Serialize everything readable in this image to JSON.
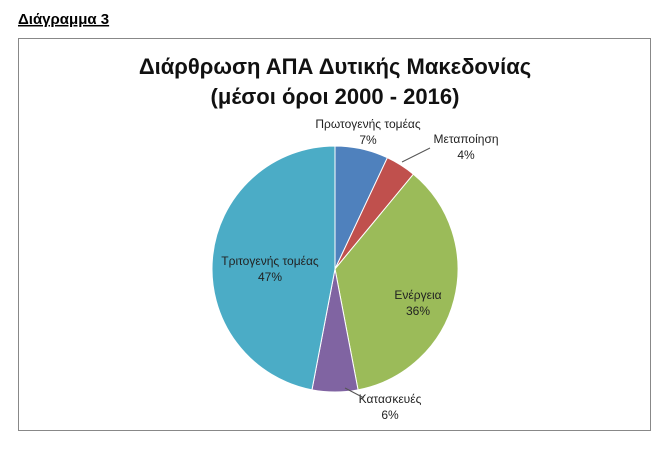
{
  "figure_label": "Διάγραμμα 3",
  "chart_data": {
    "type": "pie",
    "title": "Διάρθρωση ΑΠΑ Δυτικής Μακεδονίας",
    "subtitle": "(μέσοι όροι 2000 - 2016)",
    "categories": [
      "Πρωτογενής τομέας",
      "Μεταποίηση",
      "Ενέργεια",
      "Κατασκευές",
      "Τριτογενής τομέας"
    ],
    "values": [
      7,
      4,
      36,
      6,
      47
    ],
    "value_labels": [
      "7%",
      "4%",
      "36%",
      "6%",
      "47%"
    ],
    "colors": [
      "#4f81bd",
      "#c0504d",
      "#9bbb59",
      "#8064a2",
      "#4bacc6"
    ]
  }
}
